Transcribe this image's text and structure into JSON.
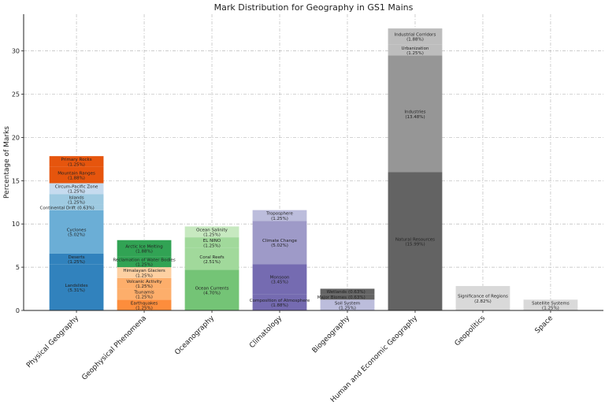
{
  "chart_data": {
    "type": "bar",
    "stacked": true,
    "title": "Mark Distribution for Geography in GS1 Mains",
    "xlabel": "",
    "ylabel": "Percentage of Marks",
    "ylim": [
      0,
      34.25
    ],
    "yticks": [
      0,
      5,
      10,
      15,
      20,
      25,
      30
    ],
    "grid": true,
    "categories": [
      "Physical Geography",
      "Geophysical Phenomena",
      "Oceanography",
      "Climatology",
      "Biogeography",
      "Human and Economic Geography",
      "Geopolitics",
      "Space"
    ],
    "stacks": [
      [
        {
          "name": "Landslides",
          "value": 5.31,
          "color": "#3182bd"
        },
        {
          "name": "Deserts",
          "value": 1.25,
          "color": "#3182bd"
        },
        {
          "name": "Cyclones",
          "value": 5.02,
          "color": "#6baed6"
        },
        {
          "name": "Continental Drift",
          "value": 0.63,
          "color": "#9ecae1"
        },
        {
          "name": "Islands",
          "value": 1.25,
          "color": "#9ecae1"
        },
        {
          "name": "Circum-Pacific Zone",
          "value": 1.25,
          "color": "#c6dbef"
        },
        {
          "name": "Mountain Ranges",
          "value": 1.88,
          "color": "#e6550d"
        },
        {
          "name": "Primary Rocks",
          "value": 1.25,
          "color": "#e6550d"
        }
      ],
      [
        {
          "name": "Earthquakes",
          "value": 1.25,
          "color": "#fd8d3c"
        },
        {
          "name": "Tsunamis",
          "value": 1.25,
          "color": "#fdae6b"
        },
        {
          "name": "Volcanic Activity",
          "value": 1.25,
          "color": "#fdae6b"
        },
        {
          "name": "Himalayan Glaciers",
          "value": 1.25,
          "color": "#fdd0a2"
        },
        {
          "name": "Reclamation of Water Bodies",
          "value": 1.25,
          "color": "#31a354"
        },
        {
          "name": "Arctic Ice Melting",
          "value": 1.88,
          "color": "#31a354"
        }
      ],
      [
        {
          "name": "Ocean Currents",
          "value": 4.7,
          "color": "#74c476"
        },
        {
          "name": "Coral Reefs",
          "value": 2.51,
          "color": "#a1d99b"
        },
        {
          "name": "EL NINO",
          "value": 1.25,
          "color": "#a1d99b"
        },
        {
          "name": "Ocean Salinity",
          "value": 1.25,
          "color": "#c7e9c0"
        }
      ],
      [
        {
          "name": "Composition of Atmosphere",
          "value": 1.88,
          "color": "#756bb1"
        },
        {
          "name": "Monsoon",
          "value": 3.45,
          "color": "#756bb1"
        },
        {
          "name": "Climate Change",
          "value": 5.02,
          "color": "#9e9ac8"
        },
        {
          "name": "Troposphere",
          "value": 1.25,
          "color": "#bcbddc"
        }
      ],
      [
        {
          "name": "Soil System",
          "value": 1.25,
          "color": "#bcbddc"
        },
        {
          "name": "Major Biomes",
          "value": 0.63,
          "color": "#636363"
        },
        {
          "name": "Wetlands",
          "value": 0.63,
          "color": "#636363"
        }
      ],
      [
        {
          "name": "Natural Resources",
          "value": 15.99,
          "color": "#636363"
        },
        {
          "name": "Industries",
          "value": 13.48,
          "color": "#969696"
        },
        {
          "name": "Urbanization",
          "value": 1.25,
          "color": "#bdbdbd"
        },
        {
          "name": "Industrial Corridors",
          "value": 1.88,
          "color": "#bdbdbd"
        }
      ],
      [
        {
          "name": "Significance of Regions",
          "value": 2.82,
          "color": "#d9d9d9"
        }
      ],
      [
        {
          "name": "Satellite Systems",
          "value": 1.25,
          "color": "#d9d9d9"
        }
      ]
    ]
  }
}
